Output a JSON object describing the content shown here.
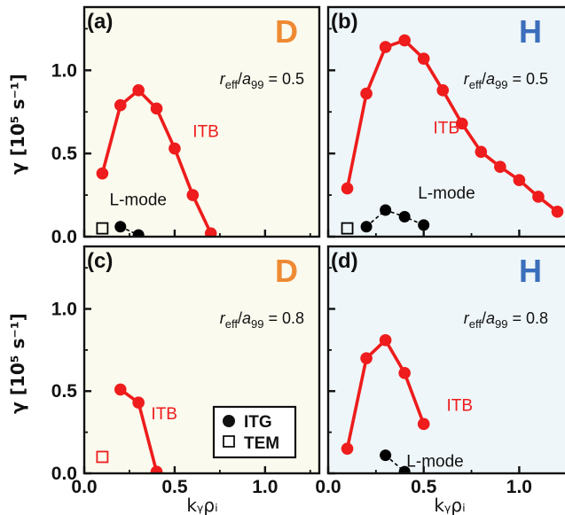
{
  "figure": {
    "ylabel": "γ [10⁵ s⁻¹]",
    "xlabel": "kᵧρᵢ",
    "legend": {
      "itg": "ITG",
      "tem": "TEM",
      "placement": "inside panel (c), lower-right"
    }
  },
  "chart_data": [
    {
      "type": "line",
      "panel_label": "(a)",
      "isotope": "D",
      "radius_label": "r_eff/a_99 = 0.5",
      "background": "#fbfaee",
      "isotope_color": "#ee8a33",
      "xlim": [
        0,
        1.3
      ],
      "ylim": [
        0,
        1.38
      ],
      "xticks": [
        "0.0",
        "0.5",
        "1.0"
      ],
      "yticks": [
        "0.0",
        "0.5",
        "1.0"
      ],
      "series": [
        {
          "name": "ITB",
          "color": "#ee1c1c",
          "style": "solid",
          "marker": "circle-filled",
          "x": [
            0.1,
            0.2,
            0.3,
            0.4,
            0.5,
            0.6,
            0.7
          ],
          "y": [
            0.38,
            0.79,
            0.88,
            0.77,
            0.53,
            0.25,
            0.02
          ]
        },
        {
          "name": "L-mode",
          "color": "#000000",
          "style": "dashed",
          "marker": "circle-filled",
          "x": [
            0.2,
            0.3
          ],
          "y": [
            0.06,
            0.01
          ]
        },
        {
          "name": "L-mode TEM",
          "color": "#000000",
          "style": "none",
          "marker": "square-open",
          "x": [
            0.1
          ],
          "y": [
            0.05
          ]
        }
      ],
      "annotations": [
        {
          "text": "ITB",
          "color": "#ee1c1c",
          "x": 0.6,
          "y": 0.6
        },
        {
          "text": "L-mode",
          "color": "#111111",
          "x": 0.14,
          "y": 0.19
        }
      ]
    },
    {
      "type": "line",
      "panel_label": "(b)",
      "isotope": "H",
      "radius_label": "r_eff/a_99 = 0.5",
      "background": "#eef6f9",
      "isotope_color": "#3b6fbc",
      "xlim": [
        0,
        1.3
      ],
      "ylim": [
        0,
        1.38
      ],
      "xticks": [
        "0.0",
        "0.5",
        "1.0"
      ],
      "yticks": [
        "0.0",
        "0.5",
        "1.0"
      ],
      "series": [
        {
          "name": "ITB",
          "color": "#ee1c1c",
          "style": "solid",
          "marker": "circle-filled",
          "x": [
            0.1,
            0.2,
            0.3,
            0.4,
            0.5,
            0.6,
            0.7,
            0.8,
            0.9,
            1.0,
            1.1,
            1.2
          ],
          "y": [
            0.29,
            0.86,
            1.14,
            1.18,
            1.07,
            0.88,
            0.68,
            0.51,
            0.42,
            0.34,
            0.24,
            0.15
          ]
        },
        {
          "name": "L-mode",
          "color": "#000000",
          "style": "dashed",
          "marker": "circle-filled",
          "x": [
            0.2,
            0.3,
            0.4,
            0.5
          ],
          "y": [
            0.06,
            0.16,
            0.12,
            0.07
          ]
        },
        {
          "name": "L-mode TEM",
          "color": "#000000",
          "style": "none",
          "marker": "square-open",
          "x": [
            0.1
          ],
          "y": [
            0.05
          ]
        }
      ],
      "annotations": [
        {
          "text": "ITB",
          "color": "#ee1c1c",
          "x": 0.55,
          "y": 0.62
        },
        {
          "text": "L-mode",
          "color": "#111111",
          "x": 0.47,
          "y": 0.23
        }
      ]
    },
    {
      "type": "line",
      "panel_label": "(c)",
      "isotope": "D",
      "radius_label": "r_eff/a_99 = 0.8",
      "background": "#fbfaee",
      "isotope_color": "#ee8a33",
      "xlim": [
        0,
        1.3
      ],
      "ylim": [
        0,
        1.38
      ],
      "xticks": [
        "0.0",
        "0.5",
        "1.0"
      ],
      "yticks": [
        "0.0",
        "0.5",
        "1.0"
      ],
      "series": [
        {
          "name": "ITB",
          "color": "#ee1c1c",
          "style": "solid",
          "marker": "circle-filled",
          "x": [
            0.2,
            0.3,
            0.4
          ],
          "y": [
            0.51,
            0.43,
            0.01
          ]
        },
        {
          "name": "ITB TEM",
          "color": "#ee1c1c",
          "style": "none",
          "marker": "square-open",
          "x": [
            0.1
          ],
          "y": [
            0.1
          ]
        }
      ],
      "annotations": [
        {
          "text": "ITB",
          "color": "#ee1c1c",
          "x": 0.37,
          "y": 0.33
        }
      ]
    },
    {
      "type": "line",
      "panel_label": "(d)",
      "isotope": "H",
      "radius_label": "r_eff/a_99 = 0.8",
      "background": "#eef6f9",
      "isotope_color": "#3b6fbc",
      "xlim": [
        0,
        1.3
      ],
      "ylim": [
        0,
        1.38
      ],
      "xticks": [
        "0.0",
        "0.5",
        "1.0"
      ],
      "yticks": [
        "0.0",
        "0.5",
        "1.0"
      ],
      "series": [
        {
          "name": "ITB",
          "color": "#ee1c1c",
          "style": "solid",
          "marker": "circle-filled",
          "x": [
            0.1,
            0.2,
            0.3,
            0.4,
            0.5
          ],
          "y": [
            0.15,
            0.7,
            0.81,
            0.61,
            0.3
          ]
        },
        {
          "name": "L-mode",
          "color": "#000000",
          "style": "dashed",
          "marker": "circle-filled",
          "x": [
            0.3,
            0.4
          ],
          "y": [
            0.11,
            0.01
          ]
        }
      ],
      "annotations": [
        {
          "text": "ITB",
          "color": "#ee1c1c",
          "x": 0.62,
          "y": 0.38
        },
        {
          "text": "L-mode",
          "color": "#111111",
          "x": 0.41,
          "y": 0.04
        }
      ]
    }
  ]
}
